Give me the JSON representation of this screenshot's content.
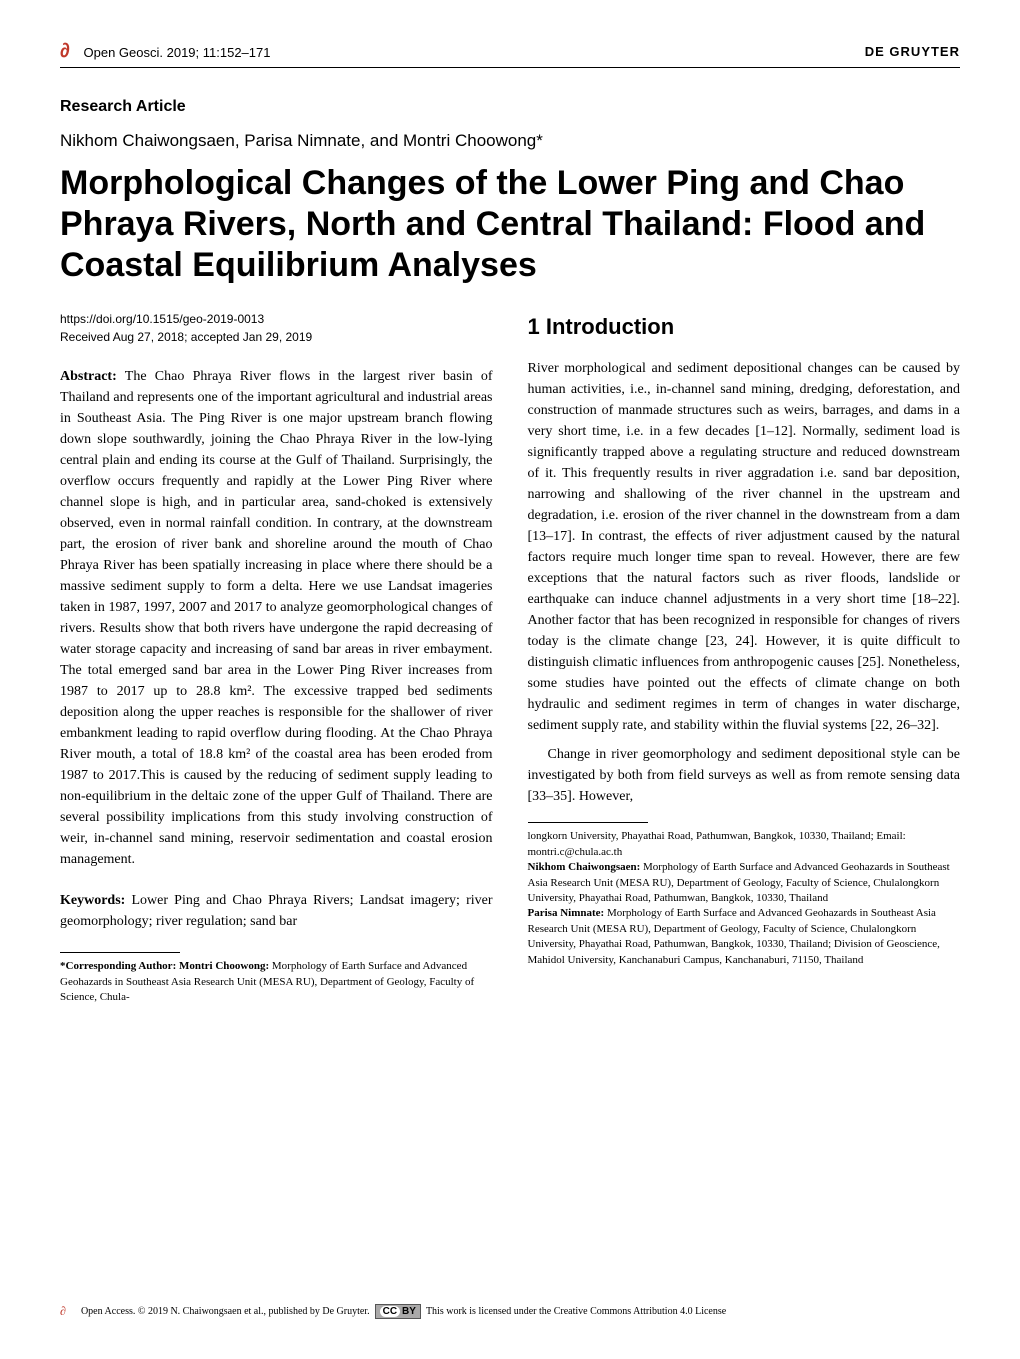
{
  "header": {
    "journal_ref": "Open Geosci. 2019; 11:152–171",
    "publisher": "DE GRUYTER",
    "open_access_icon": "∂"
  },
  "article_type": "Research Article",
  "authors": "Nikhom Chaiwongsaen, Parisa Nimnate, and Montri Choowong*",
  "title": "Morphological Changes of the Lower Ping and Chao Phraya Rivers, North and Central Thailand: Flood and Coastal Equilibrium Analyses",
  "doi": "https://doi.org/10.1515/geo-2019-0013",
  "received": "Received Aug 27, 2018; accepted Jan 29, 2019",
  "abstract": {
    "label": "Abstract:",
    "text": "The Chao Phraya River flows in the largest river basin of Thailand and represents one of the important agricultural and industrial areas in Southeast Asia. The Ping River is one major upstream branch flowing down slope southwardly, joining the Chao Phraya River in the low-lying central plain and ending its course at the Gulf of Thailand. Surprisingly, the overflow occurs frequently and rapidly at the Lower Ping River where channel slope is high, and in particular area, sand-choked is extensively observed, even in normal rainfall condition. In contrary, at the downstream part, the erosion of river bank and shoreline around the mouth of Chao Phraya River has been spatially increasing in place where there should be a massive sediment supply to form a delta. Here we use Landsat imageries taken in 1987, 1997, 2007 and 2017 to analyze geomorphological changes of rivers. Results show that both rivers have undergone the rapid decreasing of water storage capacity and increasing of sand bar areas in river embayment. The total emerged sand bar area in the Lower Ping River increases from 1987 to 2017 up to 28.8 km². The excessive trapped bed sediments deposition along the upper reaches is responsible for the shallower of river embankment leading to rapid overflow during flooding. At the Chao Phraya River mouth, a total of 18.8 km² of the coastal area has been eroded from 1987 to 2017.This is caused by the reducing of sediment supply leading to non-equilibrium in the deltaic zone of the upper Gulf of Thailand. There are several possibility implications from this study involving construction of weir, in-channel sand mining, reservoir sedimentation and coastal erosion management."
  },
  "keywords": {
    "label": "Keywords:",
    "text": "Lower Ping and Chao Phraya Rivers; Landsat imagery; river geomorphology; river regulation; sand bar"
  },
  "section1": {
    "heading": "1 Introduction",
    "para1": "River morphological and sediment depositional changes can be caused by human activities, i.e., in-channel sand mining, dredging, deforestation, and construction of manmade structures such as weirs, barrages, and dams in a very short time, i.e. in a few decades [1–12]. Normally, sediment load is significantly trapped above a regulating structure and reduced downstream of it. This frequently results in river aggradation i.e. sand bar deposition, narrowing and shallowing of the river channel in the upstream and degradation, i.e. erosion of the river channel in the downstream from a dam [13–17]. In contrast, the effects of river adjustment caused by the natural factors require much longer time span to reveal. However, there are few exceptions that the natural factors such as river floods, landslide or earthquake can induce channel adjustments in a very short time [18–22]. Another factor that has been recognized in responsible for changes of rivers today is the climate change [23, 24]. However, it is quite difficult to distinguish climatic influences from anthropogenic causes [25]. Nonetheless, some studies have pointed out the effects of climate change on both hydraulic and sediment regimes in term of changes in water discharge, sediment supply rate, and stability within the fluvial systems [22, 26–32].",
    "para2": "Change in river geomorphology and sediment depositional style can be investigated by both from field surveys as well as from remote sensing data [33–35]. However,"
  },
  "footnote_left": {
    "label": "*Corresponding Author: Montri Choowong:",
    "text": "Morphology of Earth Surface and Advanced Geohazards in Southeast Asia Research Unit (MESA RU), Department of Geology, Faculty of Science, Chula-"
  },
  "footnote_right_top": "longkorn University, Phayathai Road, Pathumwan, Bangkok, 10330, Thailand; Email: montri.c@chula.ac.th",
  "footnote_right_2": {
    "label": "Nikhom Chaiwongsaen:",
    "text": "Morphology of Earth Surface and Advanced Geohazards in Southeast Asia Research Unit (MESA RU), Department of Geology, Faculty of Science, Chulalongkorn University, Phayathai Road, Pathumwan, Bangkok, 10330, Thailand"
  },
  "footnote_right_3": {
    "label": "Parisa Nimnate:",
    "text": "Morphology of Earth Surface and Advanced Geohazards in Southeast Asia Research Unit (MESA RU), Department of Geology, Faculty of Science, Chulalongkorn University, Phayathai Road, Pathumwan, Bangkok, 10330, Thailand; Division of Geoscience, Mahidol University, Kanchanaburi Campus, Kanchanaburi, 71150, Thailand"
  },
  "footer": {
    "open_access_text": "Open Access. © 2019 N. Chaiwongsaen et al., published by De Gruyter.",
    "cc_label": "(CC) BY",
    "license_text": "This work is licensed under the Creative Commons Attribution 4.0 License"
  },
  "colors": {
    "open_access_icon": "#c0392b",
    "text": "#000000",
    "background": "#ffffff",
    "cc_badge_bg": "#aaa9a9"
  }
}
